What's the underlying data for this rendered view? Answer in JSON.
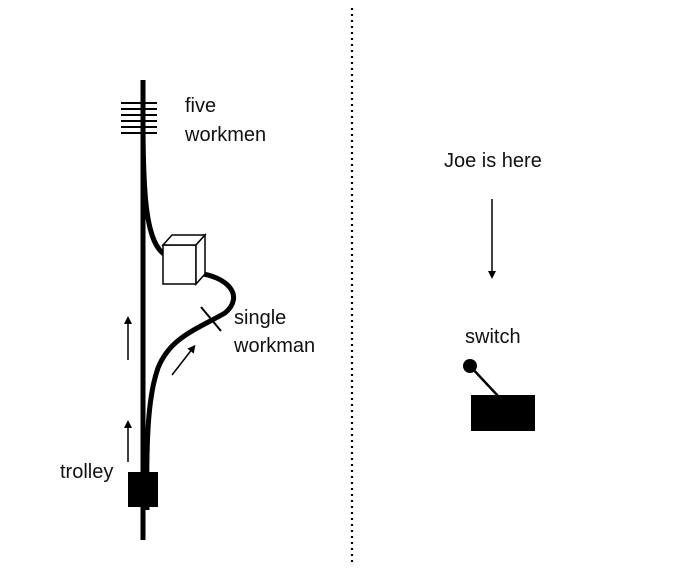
{
  "labels": {
    "five_workmen": [
      "five",
      "workmen"
    ],
    "single_workman": [
      "single",
      "workman"
    ],
    "trolley": "trolley",
    "joe": "Joe is here",
    "switch": "switch"
  },
  "colors": {
    "ink": "#000000",
    "box_fill": "#ffffff",
    "background": "#ffffff"
  },
  "icons": {
    "workmen": "stacked-horizontal-lines",
    "single_workman": "cross-tick",
    "trolley": "black-square",
    "switch": "lever-with-knob",
    "junction": "3d-cube",
    "direction": "arrow"
  }
}
